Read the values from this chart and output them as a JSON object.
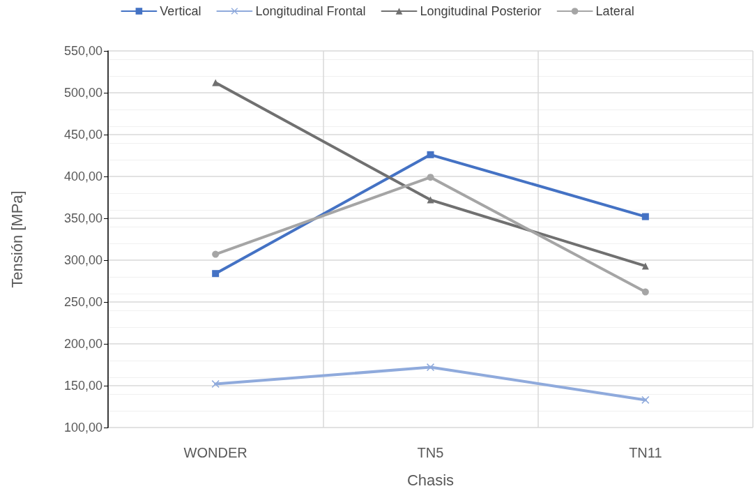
{
  "chart_data": {
    "type": "line",
    "xlabel": "Chasis",
    "ylabel": "Tensión [MPa]",
    "categories": [
      "WONDER",
      "TN5",
      "TN11"
    ],
    "series": [
      {
        "name": "Vertical",
        "color": "#4472c4",
        "marker": "square",
        "values": [
          284,
          426,
          352
        ]
      },
      {
        "name": "Longitudinal Frontal",
        "color": "#8faadc",
        "marker": "cross",
        "values": [
          152,
          172,
          133
        ]
      },
      {
        "name": "Longitudinal Posterior",
        "color": "#707070",
        "marker": "triangle",
        "values": [
          512,
          372,
          293
        ]
      },
      {
        "name": "Lateral",
        "color": "#a5a5a5",
        "marker": "circle",
        "values": [
          307,
          399,
          262
        ]
      }
    ],
    "ylim": [
      100,
      550
    ],
    "yticks": [
      {
        "value": 100,
        "label": "100,00"
      },
      {
        "value": 150,
        "label": "150,00"
      },
      {
        "value": 200,
        "label": "200,00"
      },
      {
        "value": 250,
        "label": "250,00"
      },
      {
        "value": 300,
        "label": "300,00"
      },
      {
        "value": 350,
        "label": "350,00"
      },
      {
        "value": 400,
        "label": "400,00"
      },
      {
        "value": 450,
        "label": "450,00"
      },
      {
        "value": 500,
        "label": "500,00"
      },
      {
        "value": 550,
        "label": "550,00"
      }
    ],
    "grid": true,
    "legend": "top",
    "line_style": "solid"
  }
}
